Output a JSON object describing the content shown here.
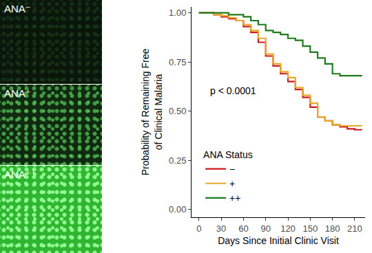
{
  "chart_data": {
    "type": "line",
    "line_style": "step",
    "panels": [
      "ANA⁻",
      "ANA⁺",
      "ANA⁺⁺"
    ],
    "x_label": "Days Since Initial Clinic Visit",
    "y_label": "Probability of Remaining Free\nof Clinical Malaria",
    "annotations": [
      "p < 0.0001"
    ],
    "legend_title": "ANA Status",
    "legend": "lower left",
    "grid": false,
    "x": [
      0,
      10,
      20,
      30,
      40,
      50,
      60,
      70,
      80,
      90,
      100,
      110,
      120,
      130,
      140,
      150,
      160,
      170,
      180,
      190,
      200,
      210,
      220
    ],
    "series": [
      {
        "name": "−",
        "color": "#cc1a1a",
        "values": [
          1.0,
          1.0,
          0.99,
          0.98,
          0.97,
          0.96,
          0.93,
          0.9,
          0.85,
          0.78,
          0.73,
          0.69,
          0.65,
          0.61,
          0.57,
          0.52,
          0.47,
          0.45,
          0.43,
          0.42,
          0.41,
          0.405,
          0.405
        ]
      },
      {
        "name": "+",
        "color": "#e8a92a",
        "values": [
          1.0,
          1.0,
          0.99,
          0.985,
          0.975,
          0.96,
          0.94,
          0.91,
          0.87,
          0.79,
          0.74,
          0.7,
          0.67,
          0.62,
          0.58,
          0.54,
          0.47,
          0.45,
          0.43,
          0.425,
          0.425,
          0.425,
          0.425
        ]
      },
      {
        "name": "++",
        "color": "#1f7a1f",
        "values": [
          1.0,
          1.0,
          1.0,
          1.0,
          0.99,
          0.99,
          0.98,
          0.96,
          0.94,
          0.91,
          0.9,
          0.89,
          0.87,
          0.86,
          0.83,
          0.8,
          0.77,
          0.74,
          0.69,
          0.68,
          0.68,
          0.68,
          0.68
        ]
      }
    ],
    "xlim": [
      -10,
      224
    ],
    "xticks": [
      0,
      30,
      60,
      90,
      120,
      150,
      180,
      210
    ],
    "ylim": [
      -0.04,
      1.03
    ],
    "yticks": [
      {
        "value": 0,
        "label": "0.00"
      },
      {
        "value": 0.25,
        "label": "0.25"
      },
      {
        "value": 0.5,
        "label": "0.50"
      },
      {
        "value": 0.75,
        "label": "0.75"
      },
      {
        "value": 1,
        "label": "1.00"
      }
    ]
  }
}
